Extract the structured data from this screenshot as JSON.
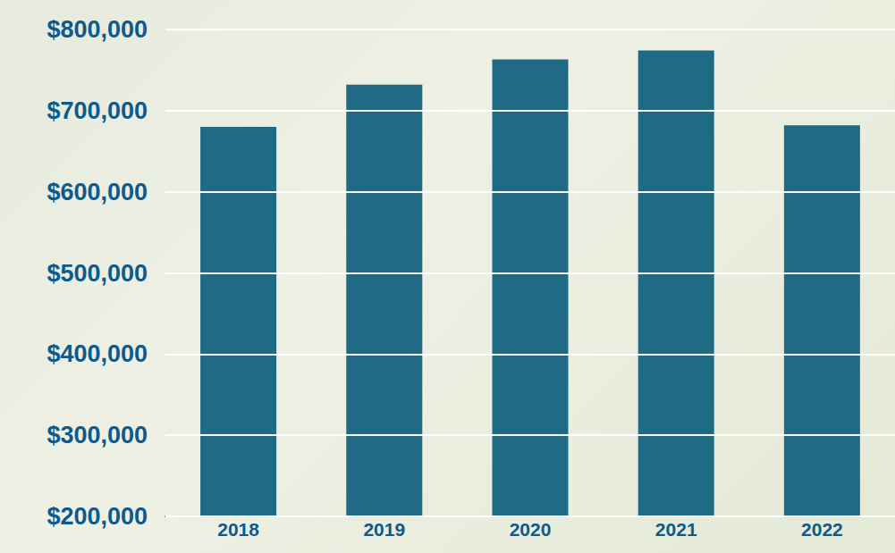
{
  "chart_data": {
    "type": "bar",
    "categories": [
      "2018",
      "2019",
      "2020",
      "2021",
      "2022"
    ],
    "values": [
      680000,
      732000,
      763000,
      774000,
      682000
    ],
    "color": "#1f6b86",
    "ylim": [
      200000,
      800000
    ],
    "yticks": [
      {
        "value": 200000,
        "label": "$200,000"
      },
      {
        "value": 300000,
        "label": "$300,000"
      },
      {
        "value": 400000,
        "label": "$400,000"
      },
      {
        "value": 500000,
        "label": "$500,000"
      },
      {
        "value": 600000,
        "label": "$600,000"
      },
      {
        "value": 700000,
        "label": "$700,000"
      },
      {
        "value": 800000,
        "label": "$800,000"
      }
    ],
    "grid": true
  }
}
